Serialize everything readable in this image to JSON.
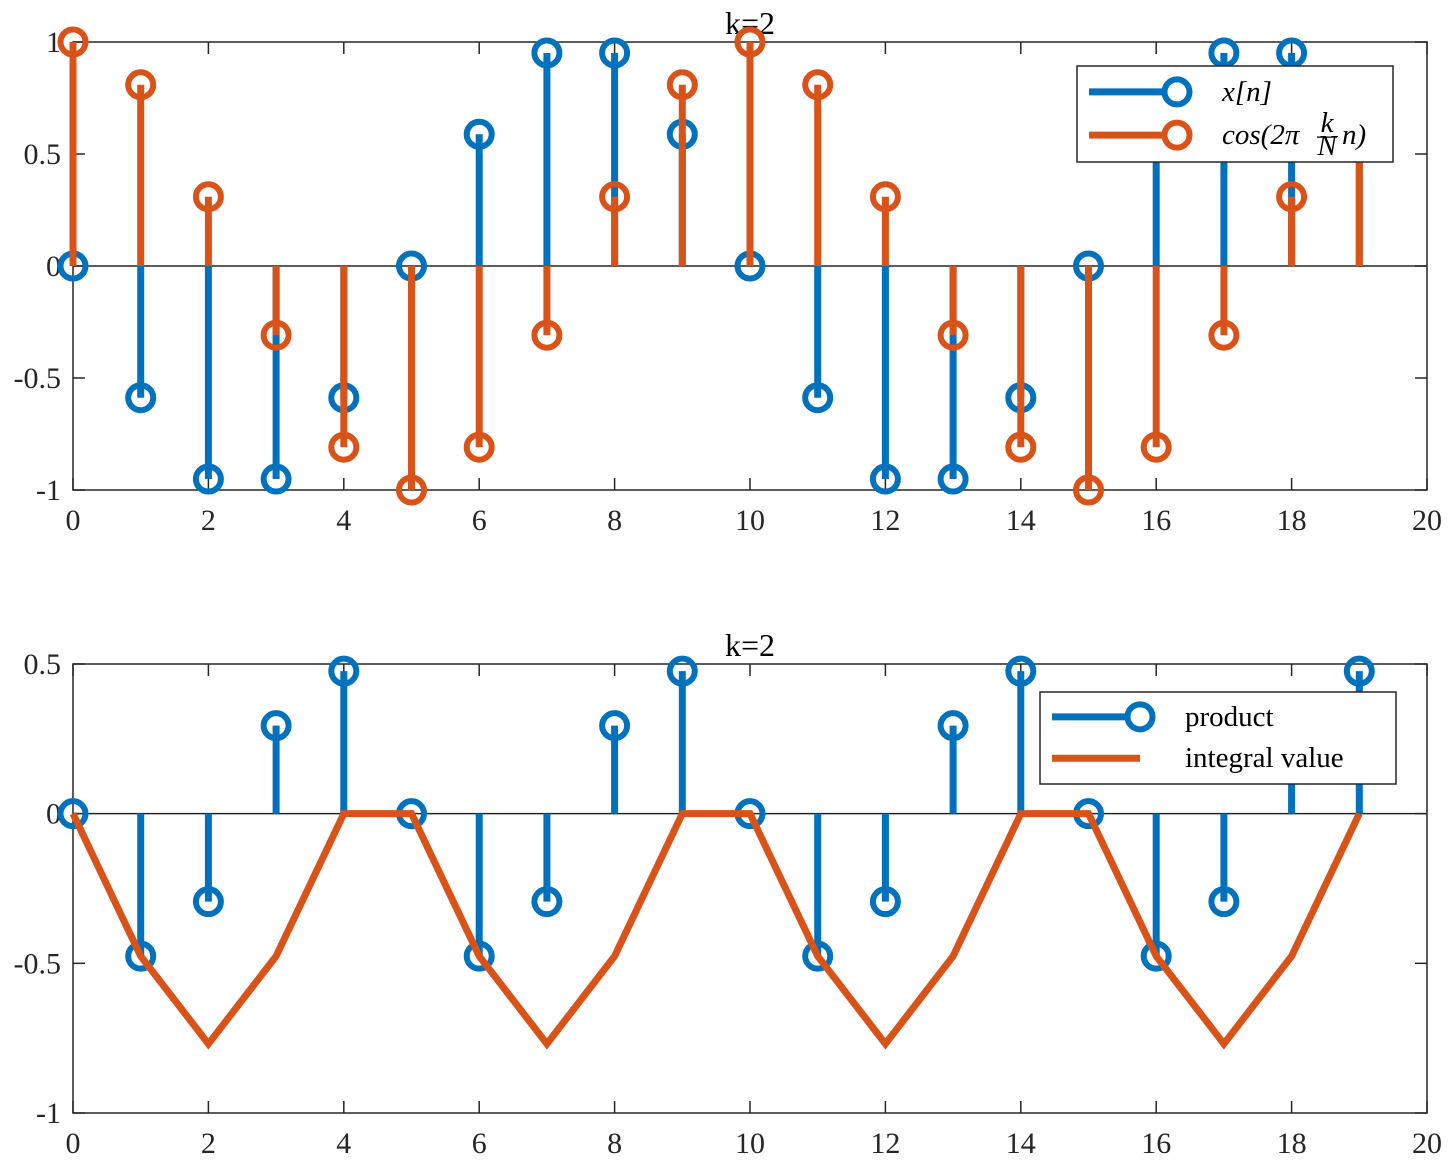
{
  "colors": {
    "blue": "#0072BD",
    "orange": "#D95319",
    "axis": "#262626"
  },
  "chart_data": [
    {
      "type": "stem",
      "title": "k=2",
      "xlim": [
        0,
        20
      ],
      "ylim": [
        -1,
        1
      ],
      "xticks": [
        0,
        2,
        4,
        6,
        8,
        10,
        12,
        14,
        16,
        18,
        20
      ],
      "xtick_labels": [
        "0",
        "2",
        "4",
        "6",
        "8",
        "10",
        "12",
        "14",
        "16",
        "18",
        "20"
      ],
      "yticks": [
        -1,
        -0.5,
        0,
        0.5,
        1
      ],
      "ytick_labels": [
        "-1",
        "-0.5",
        "0",
        "0.5",
        "1"
      ],
      "legend_position": "top-right",
      "series": [
        {
          "name": "x[n]",
          "kind": "stem",
          "color": "#0072BD",
          "x": [
            0,
            1,
            2,
            3,
            4,
            5,
            6,
            7,
            8,
            9,
            10,
            11,
            12,
            13,
            14,
            15,
            16,
            17,
            18,
            19
          ],
          "y": [
            0,
            -0.588,
            -0.951,
            -0.951,
            -0.588,
            0,
            0.588,
            0.951,
            0.951,
            0.588,
            0,
            -0.588,
            -0.951,
            -0.951,
            -0.588,
            0,
            0.588,
            0.951,
            0.951,
            0.588
          ]
        },
        {
          "name": "cos(2π k/N n)",
          "kind": "stem",
          "color": "#D95319",
          "x": [
            0,
            1,
            2,
            3,
            4,
            5,
            6,
            7,
            8,
            9,
            10,
            11,
            12,
            13,
            14,
            15,
            16,
            17,
            18,
            19
          ],
          "y": [
            1,
            0.809,
            0.309,
            -0.309,
            -0.809,
            -1,
            -0.809,
            -0.309,
            0.309,
            0.809,
            1,
            0.809,
            0.309,
            -0.309,
            -0.809,
            -1,
            -0.809,
            -0.309,
            0.309,
            0.809
          ]
        }
      ]
    },
    {
      "type": "stem",
      "title": "k=2",
      "xlim": [
        0,
        20
      ],
      "ylim": [
        -1,
        0.5
      ],
      "xticks": [
        0,
        2,
        4,
        6,
        8,
        10,
        12,
        14,
        16,
        18,
        20
      ],
      "xtick_labels": [
        "0",
        "2",
        "4",
        "6",
        "8",
        "10",
        "12",
        "14",
        "16",
        "18",
        "20"
      ],
      "yticks": [
        -1,
        -0.5,
        0,
        0.5
      ],
      "ytick_labels": [
        "-1",
        "-0.5",
        "0",
        "0.5"
      ],
      "legend_position": "top-right",
      "series": [
        {
          "name": "product",
          "kind": "stem",
          "color": "#0072BD",
          "x": [
            0,
            1,
            2,
            3,
            4,
            5,
            6,
            7,
            8,
            9,
            10,
            11,
            12,
            13,
            14,
            15,
            16,
            17,
            18,
            19
          ],
          "y": [
            0,
            -0.476,
            -0.294,
            0.294,
            0.476,
            0,
            -0.476,
            -0.294,
            0.294,
            0.476,
            0,
            -0.476,
            -0.294,
            0.294,
            0.476,
            0,
            -0.476,
            -0.294,
            0.294,
            0.476
          ]
        },
        {
          "name": "integral value",
          "kind": "line",
          "color": "#D95319",
          "x": [
            0,
            1,
            2,
            3,
            4,
            5,
            6,
            7,
            8,
            9,
            10,
            11,
            12,
            13,
            14,
            15,
            16,
            17,
            18,
            19
          ],
          "y": [
            0,
            -0.476,
            -0.769,
            -0.476,
            0,
            0,
            -0.476,
            -0.769,
            -0.476,
            0,
            0,
            -0.476,
            -0.769,
            -0.476,
            0,
            0,
            -0.476,
            -0.769,
            -0.476,
            0
          ]
        }
      ]
    }
  ]
}
